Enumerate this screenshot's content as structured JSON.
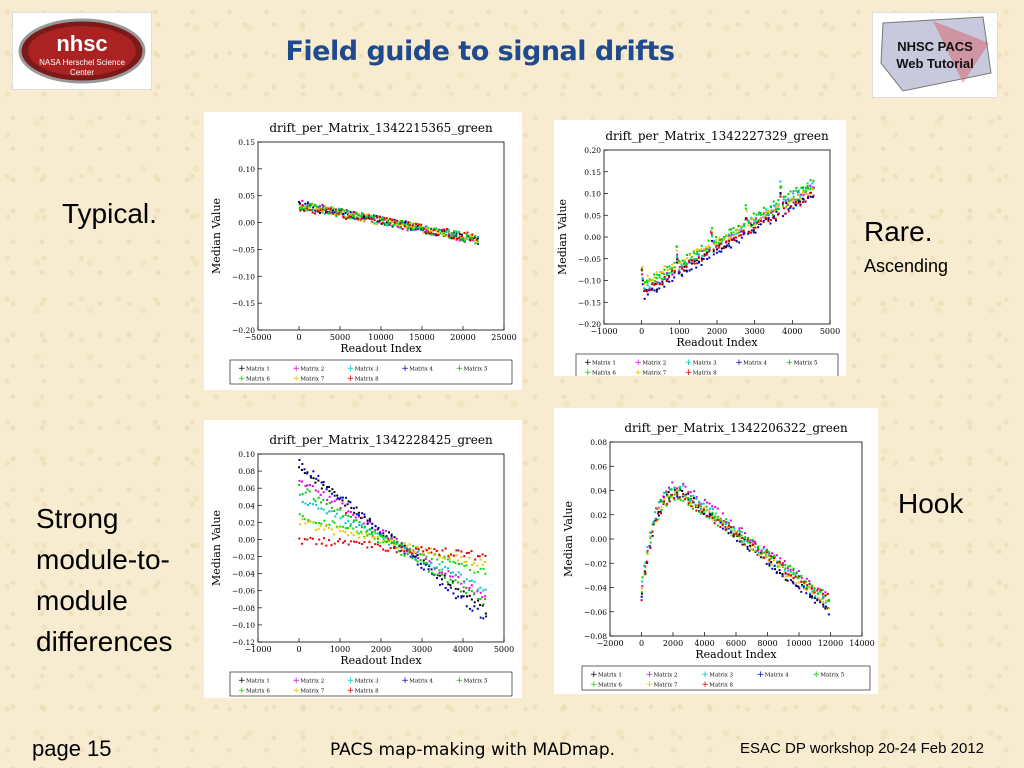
{
  "slide": {
    "title": "Field guide to signal drifts",
    "left_logo": {
      "line1": "nhsc",
      "line2": "NASA Herschel Science",
      "line3": "Center"
    },
    "right_logo": {
      "line1": "NHSC PACS",
      "line2": "Web Tutorial"
    },
    "notes": {
      "typical": "Typical.",
      "rare": "Rare.",
      "rare_sub": "Ascending",
      "strong1": "Strong",
      "strong2": "module-to-",
      "strong3": "module",
      "strong4": "differences",
      "hook": "Hook"
    },
    "footer": {
      "page": "page 15",
      "center": "PACS map-making with MADmap.",
      "right": "ESAC DP workshop 20-24 Feb 2012"
    },
    "colors": {
      "title": "#1f4a8f",
      "background": "#f7ecd0"
    }
  },
  "chart_data": [
    {
      "type": "scatter",
      "title": "drift_per_Matrix_1342215365_green",
      "xlabel": "Readout Index",
      "ylabel": "Median Value",
      "xlim": [
        -5000,
        25000
      ],
      "ylim": [
        -0.2,
        0.15
      ],
      "xticks": [
        "−5000",
        "0",
        "5000",
        "10000",
        "15000",
        "20000",
        "25000"
      ],
      "yticks": [
        "0.15",
        "0.10",
        "0.05",
        "0.00",
        "−0.05",
        "−0.10",
        "−0.15",
        "−0.20"
      ],
      "series_shape": "linear",
      "x": [
        0,
        22000
      ],
      "series": [
        {
          "name": "Matrix 1",
          "values": [
            0.033,
            -0.032
          ]
        },
        {
          "name": "Matrix 2",
          "values": [
            0.035,
            -0.034
          ]
        },
        {
          "name": "Matrix 3",
          "values": [
            0.032,
            -0.031
          ]
        },
        {
          "name": "Matrix 4",
          "values": [
            0.036,
            -0.036
          ]
        },
        {
          "name": "Matrix 5",
          "values": [
            0.031,
            -0.03
          ]
        },
        {
          "name": "Matrix 6",
          "values": [
            0.034,
            -0.033
          ]
        },
        {
          "name": "Matrix 7",
          "values": [
            0.033,
            -0.032
          ]
        },
        {
          "name": "Matrix 8",
          "values": [
            0.03,
            -0.03
          ]
        }
      ]
    },
    {
      "type": "scatter",
      "title": "drift_per_Matrix_1342227329_green",
      "xlabel": "Readout Index",
      "ylabel": "Median Value",
      "xlim": [
        -1000,
        5000
      ],
      "ylim": [
        -0.2,
        0.2
      ],
      "xticks": [
        "−1000",
        "0",
        "1000",
        "2000",
        "3000",
        "4000",
        "5000"
      ],
      "yticks": [
        "0.20",
        "0.15",
        "0.10",
        "0.05",
        "0.00",
        "−0.05",
        "−0.10",
        "−0.15",
        "−0.20"
      ],
      "series_shape": "ascending",
      "x": [
        0,
        4600
      ],
      "series": [
        {
          "name": "Matrix 1",
          "values": [
            -0.135,
            0.11
          ]
        },
        {
          "name": "Matrix 2",
          "values": [
            -0.125,
            0.12
          ]
        },
        {
          "name": "Matrix 3",
          "values": [
            -0.12,
            0.125
          ]
        },
        {
          "name": "Matrix 4",
          "values": [
            -0.14,
            0.1
          ]
        },
        {
          "name": "Matrix 5",
          "values": [
            -0.11,
            0.13
          ]
        },
        {
          "name": "Matrix 6",
          "values": [
            -0.115,
            0.115
          ]
        },
        {
          "name": "Matrix 7",
          "values": [
            -0.105,
            0.11
          ]
        },
        {
          "name": "Matrix 8",
          "values": [
            -0.125,
            0.1
          ]
        }
      ]
    },
    {
      "type": "scatter",
      "title": "drift_per_Matrix_1342228425_green",
      "xlabel": "Readout Index",
      "ylabel": "Median Value",
      "xlim": [
        -1000,
        5000
      ],
      "ylim": [
        -0.12,
        0.1
      ],
      "xticks": [
        "−1000",
        "0",
        "1000",
        "2000",
        "3000",
        "4000",
        "5000"
      ],
      "yticks": [
        "0.10",
        "0.08",
        "0.06",
        "0.04",
        "0.02",
        "0.00",
        "−0.02",
        "−0.04",
        "−0.06",
        "−0.08",
        "−0.10",
        "−0.12"
      ],
      "series_shape": "fan",
      "x": [
        0,
        4600
      ],
      "series": [
        {
          "name": "Matrix 1",
          "values": [
            0.085,
            -0.085
          ]
        },
        {
          "name": "Matrix 2",
          "values": [
            0.07,
            -0.07
          ]
        },
        {
          "name": "Matrix 3",
          "values": [
            0.05,
            -0.06
          ]
        },
        {
          "name": "Matrix 4",
          "values": [
            0.09,
            -0.095
          ]
        },
        {
          "name": "Matrix 5",
          "values": [
            0.06,
            -0.075
          ]
        },
        {
          "name": "Matrix 6",
          "values": [
            0.03,
            -0.04
          ]
        },
        {
          "name": "Matrix 7",
          "values": [
            0.02,
            -0.03
          ]
        },
        {
          "name": "Matrix 8",
          "values": [
            0.0,
            -0.02
          ]
        }
      ]
    },
    {
      "type": "scatter",
      "title": "drift_per_Matrix_1342206322_green",
      "xlabel": "Readout Index",
      "ylabel": "Median Value",
      "xlim": [
        -2000,
        14000
      ],
      "ylim": [
        -0.08,
        0.08
      ],
      "xticks": [
        "−2000",
        "0",
        "2000",
        "4000",
        "6000",
        "8000",
        "10000",
        "12000",
        "14000"
      ],
      "yticks": [
        "0.08",
        "0.06",
        "0.04",
        "0.02",
        "0.00",
        "−0.02",
        "−0.04",
        "−0.06",
        "−0.08"
      ],
      "series_shape": "hook",
      "x": [
        0,
        2500,
        12000
      ],
      "series": [
        {
          "name": "Matrix 1",
          "values": [
            -0.05,
            0.04,
            -0.06
          ]
        },
        {
          "name": "Matrix 2",
          "values": [
            -0.045,
            0.045,
            -0.05
          ]
        },
        {
          "name": "Matrix 3",
          "values": [
            -0.04,
            0.042,
            -0.055
          ]
        },
        {
          "name": "Matrix 4",
          "values": [
            -0.05,
            0.038,
            -0.06
          ]
        },
        {
          "name": "Matrix 5",
          "values": [
            -0.04,
            0.04,
            -0.05
          ]
        },
        {
          "name": "Matrix 6",
          "values": [
            -0.045,
            0.035,
            -0.05
          ]
        },
        {
          "name": "Matrix 7",
          "values": [
            -0.045,
            0.037,
            -0.055
          ]
        },
        {
          "name": "Matrix 8",
          "values": [
            -0.05,
            0.035,
            -0.05
          ]
        }
      ]
    }
  ],
  "legend_colors": [
    "#000000",
    "#e000e0",
    "#00c8c8",
    "#0000c0",
    "#00c800",
    "#00e000",
    "#f0c000",
    "#e00000"
  ]
}
